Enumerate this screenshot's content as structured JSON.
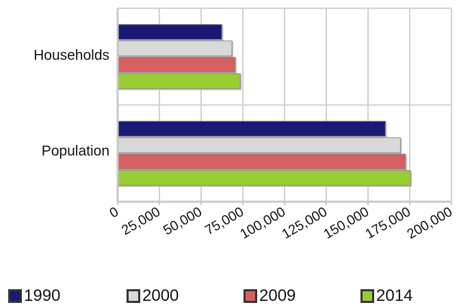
{
  "chart_data": {
    "type": "bar",
    "orientation": "horizontal",
    "categories": [
      "Households",
      "Population"
    ],
    "x_ticks": [
      "0",
      "25,000",
      "50,000",
      "75,000",
      "100,000",
      "125,000",
      "150,000",
      "175,000",
      "200,000"
    ],
    "xlim": [
      0,
      200000
    ],
    "grid": true,
    "legend_position": "bottom",
    "series": [
      {
        "name": "1990",
        "color": "#1a1a75",
        "values": [
          62000,
          160000
        ]
      },
      {
        "name": "2000",
        "color": "#d9d9d9",
        "values": [
          68000,
          169000
        ]
      },
      {
        "name": "2009",
        "color": "#d46060",
        "values": [
          70000,
          172000
        ]
      },
      {
        "name": "2014",
        "color": "#99cc33",
        "values": [
          73000,
          175000
        ]
      }
    ]
  }
}
